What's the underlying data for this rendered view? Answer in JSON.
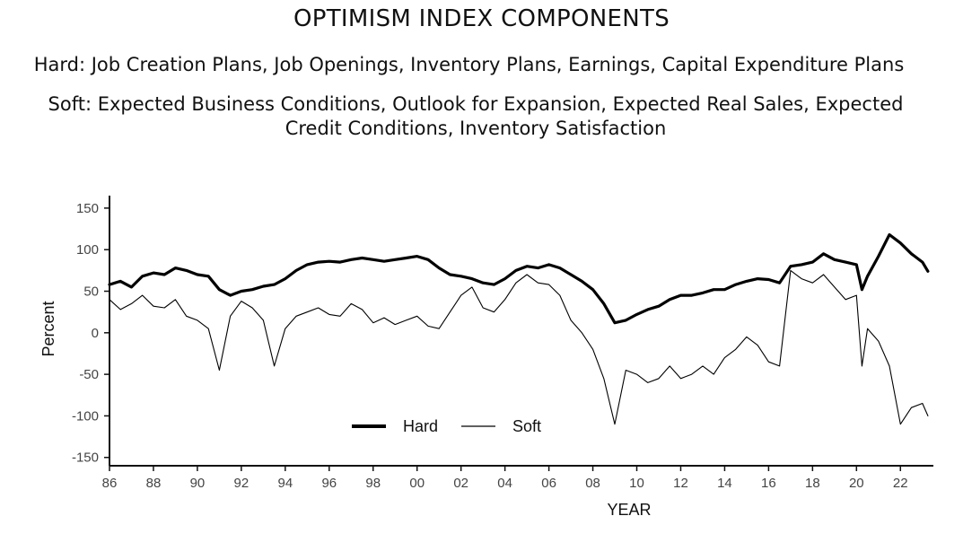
{
  "title": "OPTIMISM INDEX COMPONENTS",
  "subtitle_hard": "Hard: Job Creation Plans, Job Openings, Inventory Plans, Earnings, Capital Expenditure Plans",
  "subtitle_soft": "Soft: Expected Business Conditions, Outlook for Expansion, Expected Real Sales, Expected Credit Conditions, Inventory Satisfaction",
  "chart_data": {
    "type": "line",
    "xlabel": "YEAR",
    "ylabel": "Percent",
    "xlim": [
      1986,
      2023.5
    ],
    "ylim": [
      -160,
      165
    ],
    "yticks": [
      150,
      100,
      50,
      0,
      -50,
      -100,
      -150
    ],
    "xticks": [
      {
        "year": 1986,
        "label": "86"
      },
      {
        "year": 1988,
        "label": "88"
      },
      {
        "year": 1990,
        "label": "90"
      },
      {
        "year": 1992,
        "label": "92"
      },
      {
        "year": 1994,
        "label": "94"
      },
      {
        "year": 1996,
        "label": "96"
      },
      {
        "year": 1998,
        "label": "98"
      },
      {
        "year": 2000,
        "label": "00"
      },
      {
        "year": 2002,
        "label": "02"
      },
      {
        "year": 2004,
        "label": "04"
      },
      {
        "year": 2006,
        "label": "06"
      },
      {
        "year": 2008,
        "label": "08"
      },
      {
        "year": 2010,
        "label": "10"
      },
      {
        "year": 2012,
        "label": "12"
      },
      {
        "year": 2014,
        "label": "14"
      },
      {
        "year": 2016,
        "label": "16"
      },
      {
        "year": 2018,
        "label": "18"
      },
      {
        "year": 2020,
        "label": "20"
      },
      {
        "year": 2022,
        "label": "22"
      }
    ],
    "grid": false,
    "legend": "bottom-center",
    "series": [
      {
        "name": "Hard",
        "line": "thick",
        "x": [
          1986.0,
          1986.5,
          1987.0,
          1987.5,
          1988.0,
          1988.5,
          1989.0,
          1989.5,
          1990.0,
          1990.5,
          1991.0,
          1991.5,
          1992.0,
          1992.5,
          1993.0,
          1993.5,
          1994.0,
          1994.5,
          1995.0,
          1995.5,
          1996.0,
          1996.5,
          1997.0,
          1997.5,
          1998.0,
          1998.5,
          1999.0,
          1999.5,
          2000.0,
          2000.5,
          2001.0,
          2001.5,
          2002.0,
          2002.5,
          2003.0,
          2003.5,
          2004.0,
          2004.5,
          2005.0,
          2005.5,
          2006.0,
          2006.5,
          2007.0,
          2007.5,
          2008.0,
          2008.5,
          2009.0,
          2009.5,
          2010.0,
          2010.5,
          2011.0,
          2011.5,
          2012.0,
          2012.5,
          2013.0,
          2013.5,
          2014.0,
          2014.5,
          2015.0,
          2015.5,
          2016.0,
          2016.5,
          2017.0,
          2017.5,
          2018.0,
          2018.5,
          2019.0,
          2019.5,
          2020.0,
          2020.25,
          2020.5,
          2021.0,
          2021.5,
          2022.0,
          2022.5,
          2023.0,
          2023.25
        ],
        "values": [
          58,
          62,
          55,
          68,
          72,
          70,
          78,
          75,
          70,
          68,
          52,
          45,
          50,
          52,
          56,
          58,
          65,
          75,
          82,
          85,
          86,
          85,
          88,
          90,
          88,
          86,
          88,
          90,
          92,
          88,
          78,
          70,
          68,
          65,
          60,
          58,
          65,
          75,
          80,
          78,
          82,
          78,
          70,
          62,
          52,
          35,
          12,
          15,
          22,
          28,
          32,
          40,
          45,
          45,
          48,
          52,
          52,
          58,
          62,
          65,
          64,
          60,
          80,
          82,
          85,
          95,
          88,
          85,
          82,
          52,
          68,
          92,
          118,
          108,
          95,
          85,
          74
        ]
      },
      {
        "name": "Soft",
        "line": "thin",
        "x": [
          1986.0,
          1986.5,
          1987.0,
          1987.5,
          1988.0,
          1988.5,
          1989.0,
          1989.5,
          1990.0,
          1990.5,
          1991.0,
          1991.5,
          1992.0,
          1992.5,
          1993.0,
          1993.5,
          1994.0,
          1994.5,
          1995.0,
          1995.5,
          1996.0,
          1996.5,
          1997.0,
          1997.5,
          1998.0,
          1998.5,
          1999.0,
          1999.5,
          2000.0,
          2000.5,
          2001.0,
          2001.5,
          2002.0,
          2002.5,
          2003.0,
          2003.5,
          2004.0,
          2004.5,
          2005.0,
          2005.5,
          2006.0,
          2006.5,
          2007.0,
          2007.5,
          2008.0,
          2008.5,
          2009.0,
          2009.5,
          2010.0,
          2010.5,
          2011.0,
          2011.5,
          2012.0,
          2012.5,
          2013.0,
          2013.5,
          2014.0,
          2014.5,
          2015.0,
          2015.5,
          2016.0,
          2016.5,
          2017.0,
          2017.5,
          2018.0,
          2018.5,
          2019.0,
          2019.5,
          2020.0,
          2020.25,
          2020.5,
          2021.0,
          2021.5,
          2022.0,
          2022.5,
          2023.0,
          2023.25
        ],
        "values": [
          40,
          28,
          35,
          45,
          32,
          30,
          40,
          20,
          15,
          5,
          -45,
          20,
          38,
          30,
          15,
          -40,
          5,
          20,
          25,
          30,
          22,
          20,
          35,
          28,
          12,
          18,
          10,
          15,
          20,
          8,
          5,
          25,
          45,
          55,
          30,
          25,
          40,
          60,
          70,
          60,
          58,
          45,
          15,
          0,
          -20,
          -55,
          -110,
          -45,
          -50,
          -60,
          -55,
          -40,
          -55,
          -50,
          -40,
          -50,
          -30,
          -20,
          -5,
          -15,
          -35,
          -40,
          75,
          65,
          60,
          70,
          55,
          40,
          45,
          -40,
          5,
          -10,
          -40,
          -110,
          -90,
          -85,
          -100
        ]
      }
    ]
  }
}
